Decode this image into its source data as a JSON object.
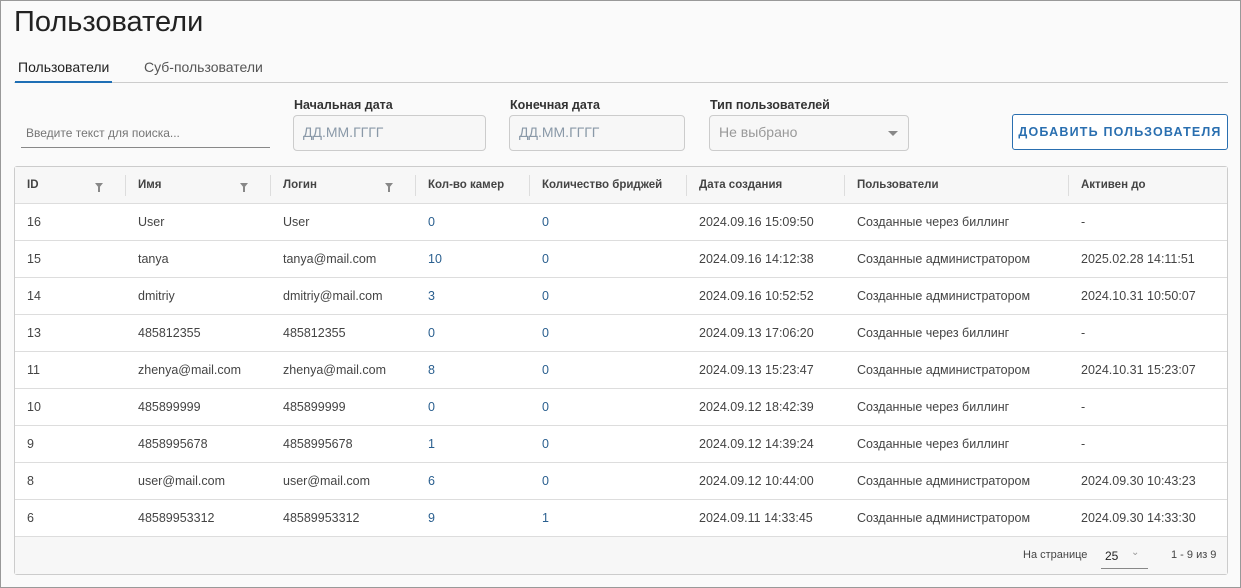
{
  "page_title": "Пользователи",
  "tabs": [
    {
      "label": "Пользователи",
      "active": true
    },
    {
      "label": "Суб-пользователи",
      "active": false
    }
  ],
  "search": {
    "placeholder": "Введите текст для поиска..."
  },
  "filters": {
    "start_date": {
      "label": "Начальная дата",
      "placeholder": "ДД.ММ.ГГГГ"
    },
    "end_date": {
      "label": "Конечная дата",
      "placeholder": "ДД.ММ.ГГГГ"
    },
    "user_type": {
      "label": "Тип пользователей",
      "value": "Не выбрано"
    }
  },
  "add_button": "ДОБАВИТЬ ПОЛЬЗОВАТЕЛЯ",
  "accent_color": "#2a6fb0",
  "table": {
    "columns": [
      "ID",
      "Имя",
      "Логин",
      "Кол-во камер",
      "Количество бриджей",
      "Дата создания",
      "Пользователи",
      "Активен до"
    ],
    "rows": [
      [
        "16",
        "User",
        "User",
        "0",
        "0",
        "2024.09.16 15:09:50",
        "Созданные через биллинг",
        "-"
      ],
      [
        "15",
        "tanya",
        "tanya@mail.com",
        "10",
        "0",
        "2024.09.16 14:12:38",
        "Созданные администратором",
        "2025.02.28 14:11:51"
      ],
      [
        "14",
        "dmitriy",
        "dmitriy@mail.com",
        "3",
        "0",
        "2024.09.16 10:52:52",
        "Созданные администратором",
        "2024.10.31 10:50:07"
      ],
      [
        "13",
        "485812355",
        "485812355",
        "0",
        "0",
        "2024.09.13 17:06:20",
        "Созданные через биллинг",
        "-"
      ],
      [
        "11",
        "zhenya@mail.com",
        "zhenya@mail.com",
        "8",
        "0",
        "2024.09.13 15:23:47",
        "Созданные администратором",
        "2024.10.31 15:23:07"
      ],
      [
        "10",
        "485899999",
        "485899999",
        "0",
        "0",
        "2024.09.12 18:42:39",
        "Созданные через биллинг",
        "-"
      ],
      [
        "9",
        "4858995678",
        "4858995678",
        "1",
        "0",
        "2024.09.12 14:39:24",
        "Созданные через биллинг",
        "-"
      ],
      [
        "8",
        "user@mail.com",
        "user@mail.com",
        "6",
        "0",
        "2024.09.12 10:44:00",
        "Созданные администратором",
        "2024.09.30 10:43:23"
      ],
      [
        "6",
        "48589953312",
        "48589953312",
        "9",
        "1",
        "2024.09.11 14:33:45",
        "Созданные администратором",
        "2024.09.30 14:33:30"
      ]
    ]
  },
  "pagination": {
    "per_page_label": "На странице",
    "per_page": "25",
    "range": "1 - 9 из 9"
  }
}
